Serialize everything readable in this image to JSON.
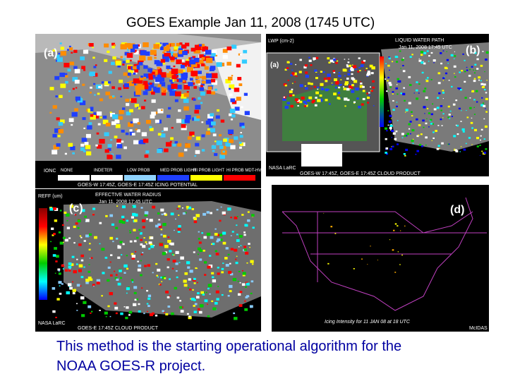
{
  "title": "GOES Example Jan 11, 2008 (1745 UTC)",
  "panels": [
    {
      "label": "(a)",
      "legend_title": "IONC",
      "legend": [
        "NONE",
        "INDETER",
        "LOW PROB",
        "MED PROB LIGHT",
        "HI PROB LIGHT",
        "HI PROB MDT-HVY"
      ],
      "footer": "GOES-W 17:45Z, GOES-E 17:45Z ICING POTENTIAL"
    },
    {
      "label": "(b)",
      "unit": "LWP (cm-2)",
      "heading": "LIQUID WATER PATH",
      "time": "Jan 11, 2008 17:45 UTC",
      "inset_label": "(a)",
      "credit": "NASA LaRC",
      "footer": "GOES-W 17:45Z, GOES-E 17:45Z CLOUD PRODUCT"
    },
    {
      "label": "(c)",
      "unit": "REFF (um)",
      "heading": "EFFECTIVE WATER RADIUS",
      "time": "Jan 11, 2008 17:45 UTC",
      "credit": "NASA LaRC",
      "footer": "GOES-E 17:45Z CLOUD PRODUCT"
    },
    {
      "label": "(d)",
      "footer": "Icing Intensity for 11 JAN 08 at 18 UTC",
      "credit": "McIDAS"
    }
  ],
  "caption": [
    "This method is the starting operational algorithm for the",
    "NOAA GOES-R project."
  ]
}
